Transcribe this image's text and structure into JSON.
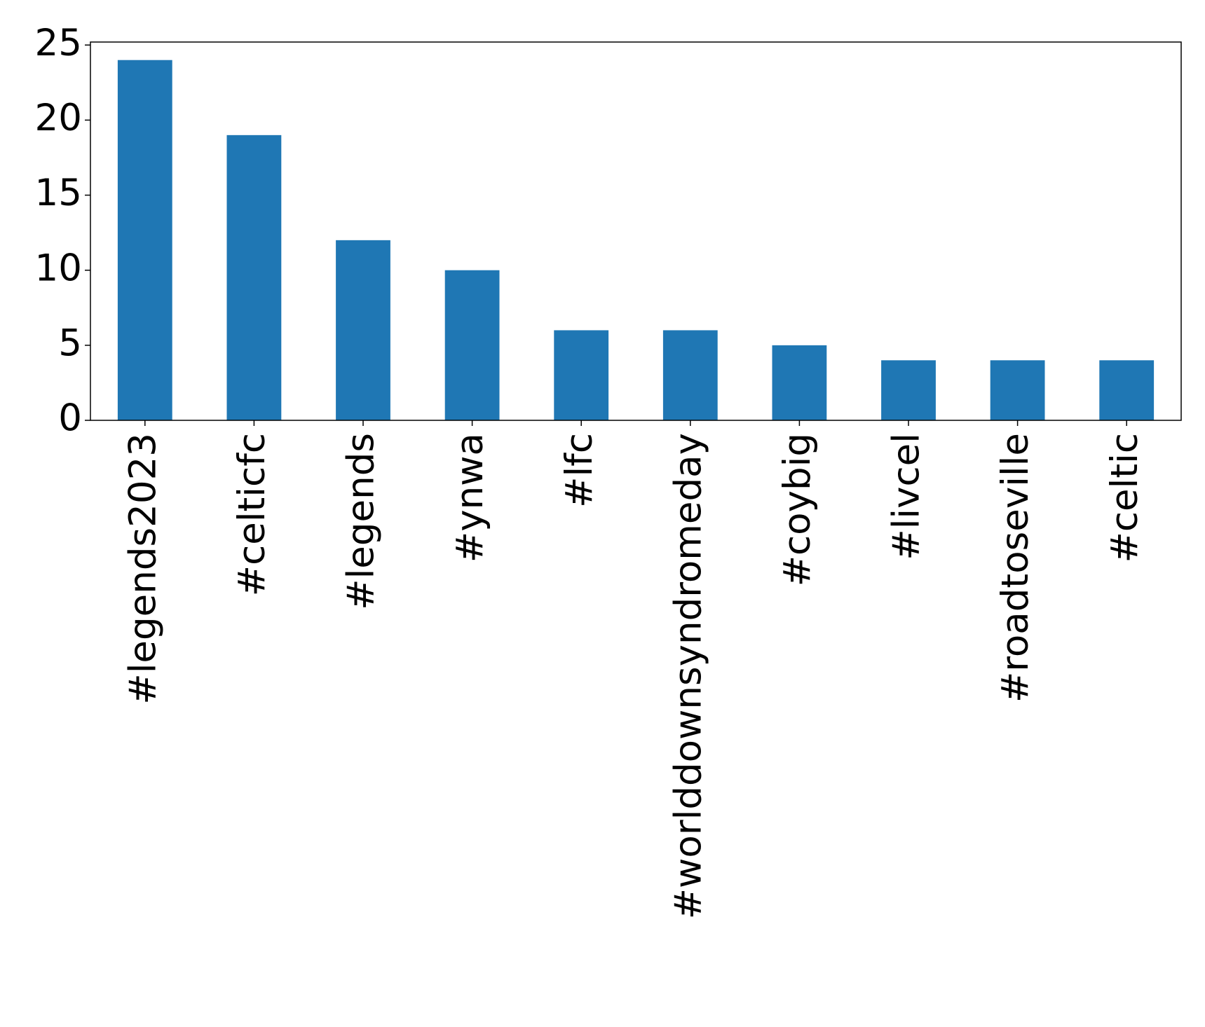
{
  "chart_data": {
    "type": "bar",
    "categories": [
      "#legends2023",
      "#celticfc",
      "#legends",
      "#ynwa",
      "#lfc",
      "#worlddownsyndromeday",
      "#coybig",
      "#livcel",
      "#roadtoseville",
      "#celtic"
    ],
    "values": [
      24,
      19,
      12,
      10,
      6,
      6,
      5,
      4,
      4,
      4
    ],
    "color": "#1f77b4",
    "ylim": [
      0,
      25.2
    ],
    "yticks": [
      0,
      5,
      10,
      15,
      20,
      25
    ],
    "grid": false
  }
}
